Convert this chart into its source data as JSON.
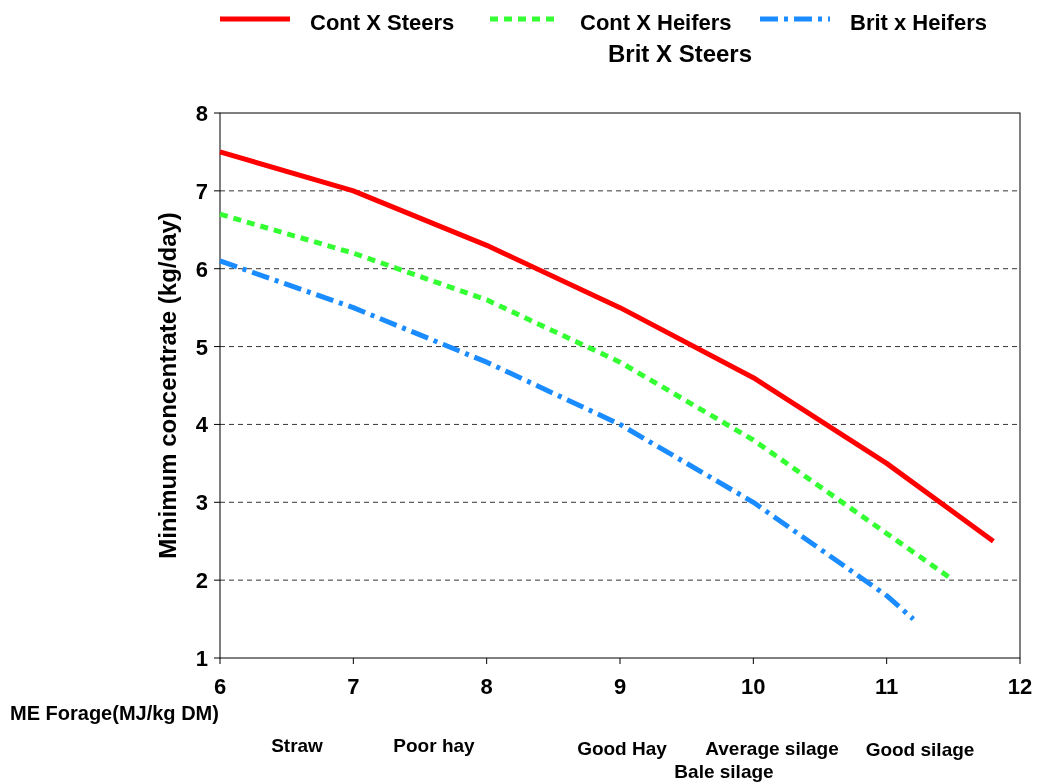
{
  "chart_data": {
    "type": "line",
    "xlabel": "ME Forage(MJ/kg DM)",
    "ylabel": "Minimum concentrate (kg/day)",
    "xlim": [
      6,
      12
    ],
    "xticks": [
      6,
      7,
      8,
      9,
      10,
      11,
      12
    ],
    "ylim": [
      1,
      8
    ],
    "yticks": [
      1,
      2,
      3,
      4,
      5,
      6,
      7,
      8
    ],
    "grid": "y",
    "legend": "top",
    "marker": "none",
    "series": [
      {
        "name": "Cont X Steers",
        "color": "#ff0000",
        "line_style": "solid",
        "x": [
          6,
          7,
          8,
          9,
          10,
          11,
          11.8
        ],
        "values": [
          7.5,
          7.0,
          6.3,
          5.5,
          4.6,
          3.5,
          2.5
        ]
      },
      {
        "name": "Cont X Heifers",
        "color": "#33ff33",
        "line_style": "dotted",
        "x": [
          6,
          7,
          8,
          9,
          10,
          11,
          11.5
        ],
        "values": [
          6.7,
          6.2,
          5.6,
          4.8,
          3.8,
          2.6,
          2.0
        ]
      },
      {
        "name": "Brit x Heifers",
        "color": "#1a8cff",
        "line_style": "dashdot",
        "x": [
          6,
          7,
          8,
          9,
          10,
          11,
          11.2
        ],
        "values": [
          6.1,
          5.5,
          4.8,
          4.0,
          3.0,
          1.8,
          1.5
        ]
      }
    ],
    "annotations": [
      "Brit X Steers",
      "Straw",
      "Poor hay",
      "Good Hay",
      "Average silage",
      "Good silage",
      "Bale silage"
    ]
  }
}
